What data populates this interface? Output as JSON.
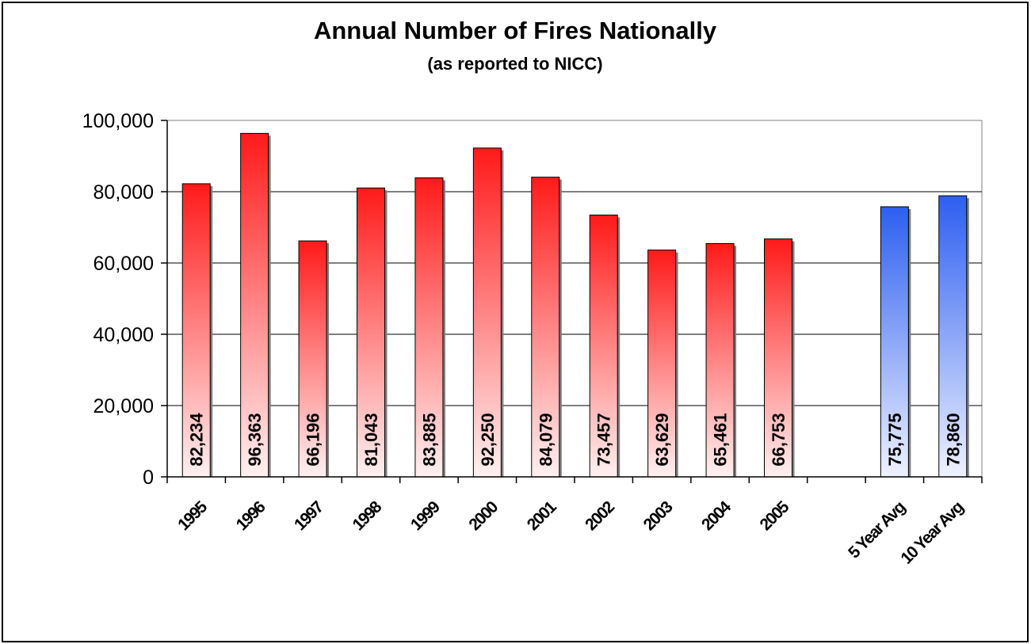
{
  "chart_data": {
    "type": "bar",
    "title": "Annual Number of Fires Nationally",
    "subtitle": "(as reported to NICC)",
    "xlabel": "",
    "ylabel": "",
    "ylim": [
      0,
      100000
    ],
    "y_ticks": [
      "0",
      "20,000",
      "40,000",
      "60,000",
      "80,000",
      "100,000"
    ],
    "y_tick_values": [
      0,
      20000,
      40000,
      60000,
      80000,
      100000
    ],
    "grid": true,
    "legend": "none",
    "categories": [
      "1995",
      "1996",
      "1997",
      "1998",
      "1999",
      "2000",
      "2001",
      "2002",
      "2003",
      "2004",
      "2005",
      "",
      "5 Year Avg",
      "10 Year Avg"
    ],
    "values": [
      82234,
      96363,
      66196,
      81043,
      83885,
      92250,
      84079,
      73457,
      63629,
      65461,
      66753,
      null,
      75775,
      78860
    ],
    "data_labels": [
      "82,234",
      "96,363",
      "66,196",
      "81,043",
      "83,885",
      "92,250",
      "84,079",
      "73,457",
      "63,629",
      "65,461",
      "66,753",
      "",
      "75,775",
      "78,860"
    ],
    "bar_kind": [
      "year",
      "year",
      "year",
      "year",
      "year",
      "year",
      "year",
      "year",
      "year",
      "year",
      "year",
      "none",
      "avg",
      "avg"
    ],
    "colors": {
      "year_bar_top": "#ff1a1a",
      "year_bar_bottom": "#fff0f0",
      "avg_bar_top": "#2d5ef0",
      "avg_bar_bottom": "#eef2ff",
      "plot_background": "#ffffff",
      "gridline": "#000000",
      "border": "#000000"
    }
  }
}
